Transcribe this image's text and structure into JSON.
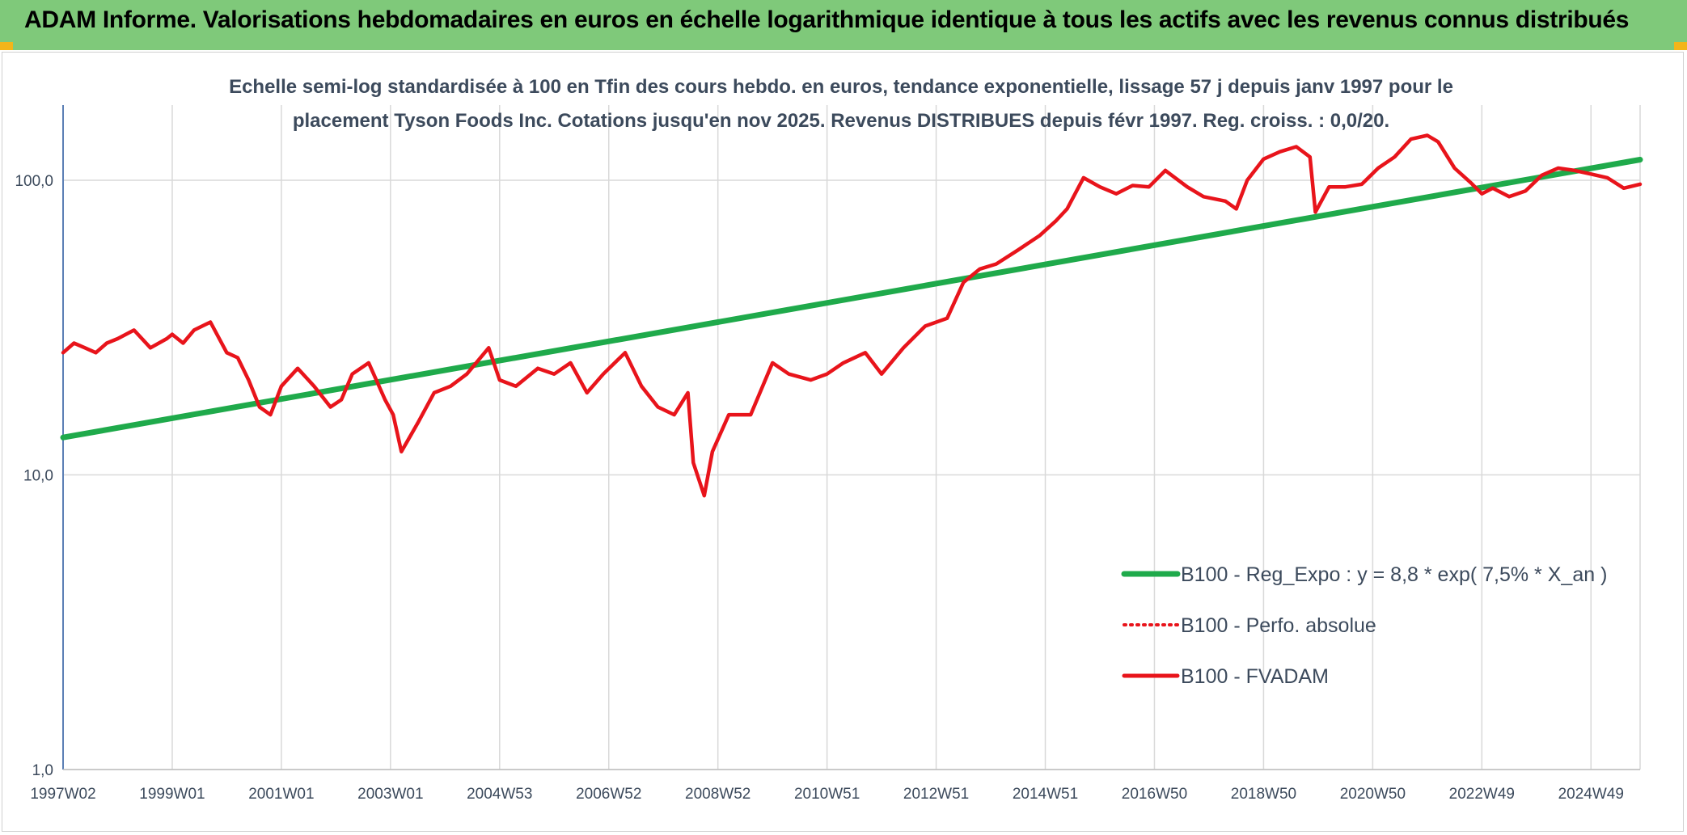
{
  "banner": {
    "title": "ADAM Informe. Valorisations hebdomadaires en euros en échelle logarithmique identique à tous les actifs avec les revenus connus distribués"
  },
  "colors": {
    "banner_bg": "#7fc97a",
    "corner_accent": "#f3b51a",
    "trend": "#1faa4b",
    "fvadam": "#e8141b",
    "grid": "#d9d9d9",
    "text": "#3c4a5c"
  },
  "chart_data": {
    "type": "line",
    "title_lines": [
      "Echelle semi-log standardisée à 100 en Tfin des cours hebdo. en euros, tendance exponentielle, lissage 57 j depuis janv 1997 pour le",
      "placement Tyson Foods Inc. Cotations jusqu'en nov 2025. Revenus DISTRIBUES depuis févr 1997. Reg. croiss. : 0,0/20."
    ],
    "y_scale": "log",
    "ylim": [
      1,
      180
    ],
    "y_ticks": [
      1,
      10,
      100
    ],
    "y_tick_labels": [
      "1,0",
      "10,0",
      "100,0"
    ],
    "xlim": [
      1997.0,
      2025.9
    ],
    "x_ticks": [
      1997.0,
      1999.0,
      2001.0,
      2003.0,
      2005.0,
      2007.0,
      2009.0,
      2011.0,
      2013.0,
      2015.0,
      2017.0,
      2019.0,
      2021.0,
      2023.0,
      2025.0
    ],
    "x_tick_labels": [
      "1997W02",
      "1999W01",
      "2001W01",
      "2003W01",
      "2004W53",
      "2006W52",
      "2008W52",
      "2010W51",
      "2012W51",
      "2014W51",
      "2016W50",
      "2018W50",
      "2020W50",
      "2022W49",
      "2024W49"
    ],
    "grid": true,
    "legend_position": "bottom-right",
    "legend": [
      {
        "label": "B100 - Reg_Expo : y = 8,8 * exp( 7,5% *  X_an )",
        "style": "solid-thick",
        "color": "#1faa4b"
      },
      {
        "label": "B100 - Perfo. absolue",
        "style": "dotted",
        "color": "#e8141b"
      },
      {
        "label": "B100 - FVADAM",
        "style": "solid",
        "color": "#e8141b"
      }
    ],
    "series": [
      {
        "name": "B100 - Reg_Expo : y = 8,8 * exp( 7,5% *  X_an )",
        "type": "trend",
        "x": [
          1997.0,
          2025.9
        ],
        "values": [
          13.4,
          117.5
        ]
      },
      {
        "name": "B100 - FVADAM",
        "type": "data",
        "x": [
          1997.0,
          1997.2,
          1997.4,
          1997.6,
          1997.8,
          1998.0,
          1998.3,
          1998.6,
          1998.9,
          1999.0,
          1999.2,
          1999.4,
          1999.7,
          2000.0,
          2000.2,
          2000.4,
          2000.6,
          2000.8,
          2001.0,
          2001.3,
          2001.6,
          2001.9,
          2002.1,
          2002.3,
          2002.6,
          2002.9,
          2003.05,
          2003.2,
          2003.5,
          2003.8,
          2004.1,
          2004.4,
          2004.8,
          2005.0,
          2005.3,
          2005.7,
          2006.0,
          2006.3,
          2006.6,
          2006.9,
          2007.3,
          2007.6,
          2007.9,
          2008.2,
          2008.45,
          2008.55,
          2008.75,
          2008.9,
          2009.2,
          2009.6,
          2010.0,
          2010.3,
          2010.7,
          2011.0,
          2011.3,
          2011.7,
          2012.0,
          2012.4,
          2012.8,
          2013.2,
          2013.5,
          2013.8,
          2014.1,
          2014.5,
          2014.9,
          2015.2,
          2015.4,
          2015.7,
          2016.0,
          2016.3,
          2016.6,
          2016.9,
          2017.2,
          2017.6,
          2017.9,
          2018.3,
          2018.5,
          2018.7,
          2019.0,
          2019.3,
          2019.6,
          2019.85,
          2019.95,
          2020.2,
          2020.5,
          2020.8,
          2021.1,
          2021.4,
          2021.7,
          2022.0,
          2022.2,
          2022.5,
          2022.8,
          2023.0,
          2023.2,
          2023.5,
          2023.8,
          2024.1,
          2024.4,
          2024.7,
          2025.0,
          2025.3,
          2025.6,
          2025.9
        ],
        "values": [
          26,
          28,
          27,
          26,
          28,
          29,
          31,
          27,
          29,
          30,
          28,
          31,
          33,
          26,
          25,
          21,
          17,
          16,
          20,
          23,
          20,
          17,
          18,
          22,
          24,
          18,
          16,
          12,
          15,
          19,
          20,
          22,
          27,
          21,
          20,
          23,
          22,
          24,
          19,
          22,
          26,
          20,
          17,
          16,
          19,
          11,
          8.5,
          12,
          16,
          16,
          24,
          22,
          21,
          22,
          24,
          26,
          22,
          27,
          32,
          34,
          45,
          50,
          52,
          58,
          65,
          73,
          80,
          102,
          95,
          90,
          96,
          95,
          108,
          95,
          88,
          85,
          80,
          100,
          118,
          125,
          130,
          120,
          78,
          95,
          95,
          97,
          110,
          120,
          138,
          142,
          135,
          110,
          98,
          90,
          94,
          88,
          92,
          104,
          110,
          108,
          105,
          102,
          94,
          97
        ]
      }
    ]
  }
}
